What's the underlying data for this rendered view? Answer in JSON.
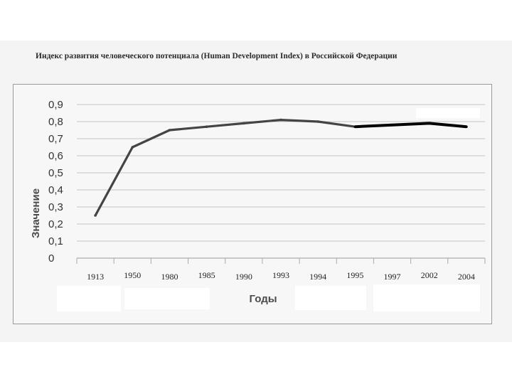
{
  "chart_data": {
    "type": "line",
    "title": "Индекс развития человеческого потенциала (Human Development Index) в Российской Федерации",
    "xlabel": "Годы",
    "ylabel": "Значение",
    "categories": [
      "1913",
      "1950",
      "1980",
      "1985",
      "1990",
      "1993",
      "1994",
      "1995",
      "1997",
      "2002",
      "2004"
    ],
    "y_ticks": [
      "0",
      "0,1",
      "0,2",
      "0,3",
      "0,4",
      "0,5",
      "0,6",
      "0,7",
      "0,8",
      "0,9"
    ],
    "ylim": [
      0,
      0.9
    ],
    "grid": true,
    "series": [
      {
        "values": [
          0.25,
          0.65,
          0.75,
          0.77,
          0.79,
          0.81,
          0.8,
          0.77,
          0.78,
          0.79,
          0.77
        ],
        "color": "#444444"
      }
    ]
  }
}
